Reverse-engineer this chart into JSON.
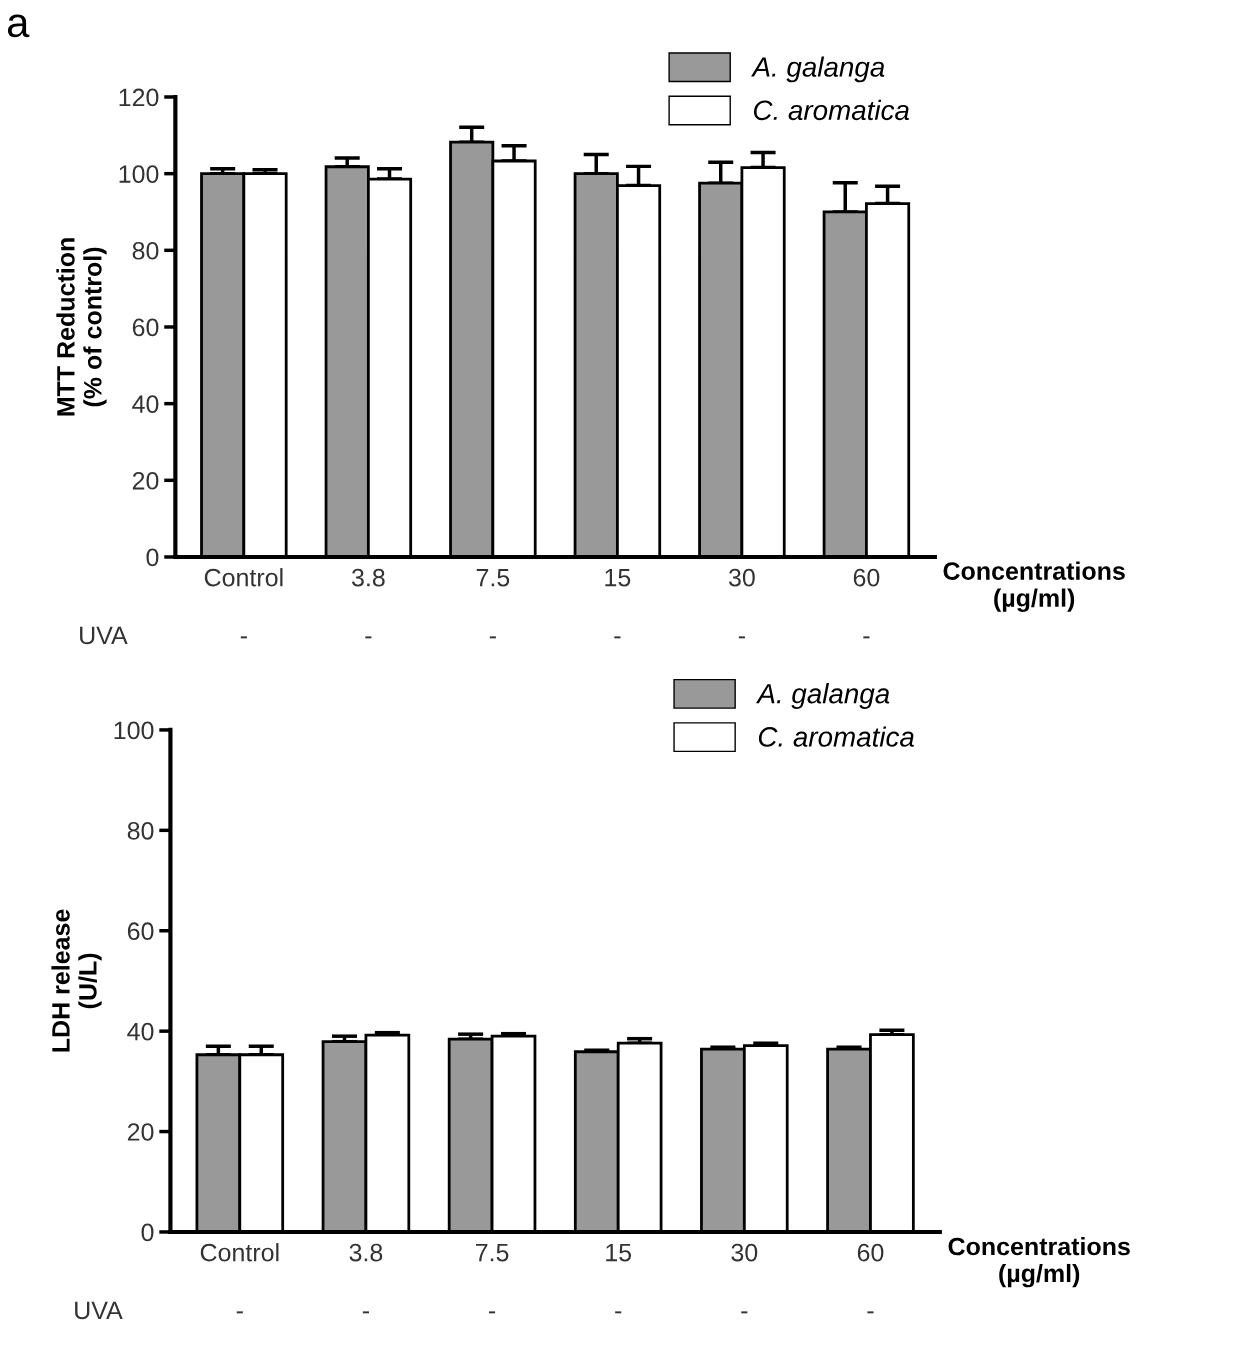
{
  "chart_data": [
    {
      "type": "bar",
      "ylabel": "MTT Reduction\n(% of control)",
      "xlabel": "Concentrations\n(µg/ml)",
      "categories": [
        "Control",
        "3.8",
        "7.5",
        "15",
        "30",
        "60"
      ],
      "ylim": [
        0,
        120
      ],
      "yticks": [
        0,
        20,
        40,
        60,
        80,
        100,
        120
      ],
      "legend": "top right",
      "grid": false,
      "series": [
        {
          "name": "A. galanga",
          "color": "#999999",
          "values": [
            100,
            101.8,
            108.2,
            100,
            97.5,
            90
          ],
          "errors": [
            [
              100,
              101.3
            ],
            [
              101.8,
              104.1
            ],
            [
              108.2,
              112.1
            ],
            [
              100,
              105
            ],
            [
              97.5,
              103
            ],
            [
              90,
              97.6
            ]
          ]
        },
        {
          "name": "C. aromatica",
          "color": "#ffffff",
          "values": [
            100,
            98.6,
            103.3,
            96.9,
            101.6,
            92.2
          ],
          "errors": [
            [
              100,
              101
            ],
            [
              98.6,
              101.3
            ],
            [
              103.3,
              107.3
            ],
            [
              96.9,
              101.9
            ],
            [
              101.6,
              105.5
            ],
            [
              92.2,
              96.7
            ]
          ]
        }
      ],
      "annotations": [
        "a",
        "UVA",
        "-",
        "-",
        "-",
        "-",
        "-",
        "-"
      ]
    },
    {
      "type": "bar",
      "ylabel": "LDH release\n(U/L)",
      "xlabel": "Concentrations\n(µg/ml)",
      "categories": [
        "Control",
        "3.8",
        "7.5",
        "15",
        "30",
        "60"
      ],
      "ylim": [
        0,
        100
      ],
      "yticks": [
        0,
        20,
        40,
        60,
        80,
        100
      ],
      "legend": "top right",
      "grid": false,
      "series": [
        {
          "name": "A. galanga",
          "color": "#999999",
          "values": [
            35.3,
            37.9,
            38.4,
            35.9,
            36.4,
            36.4
          ],
          "errors": [
            [
              35.3,
              37.0
            ],
            [
              37.9,
              39.0
            ],
            [
              38.4,
              39.4
            ],
            [
              35.9,
              36.2
            ],
            [
              36.4,
              36.8
            ],
            [
              36.4,
              36.8
            ]
          ]
        },
        {
          "name": "C. aromatica",
          "color": "#ffffff",
          "values": [
            35.3,
            39.2,
            39.0,
            37.6,
            37.1,
            39.3
          ],
          "errors": [
            [
              35.3,
              37.0
            ],
            [
              39.2,
              39.7
            ],
            [
              39.0,
              39.5
            ],
            [
              37.6,
              38.5
            ],
            [
              37.1,
              37.6
            ],
            [
              39.3,
              40.2
            ]
          ]
        }
      ],
      "annotations": [
        "UVA",
        "-",
        "-",
        "-",
        "-",
        "-",
        "-"
      ]
    }
  ]
}
